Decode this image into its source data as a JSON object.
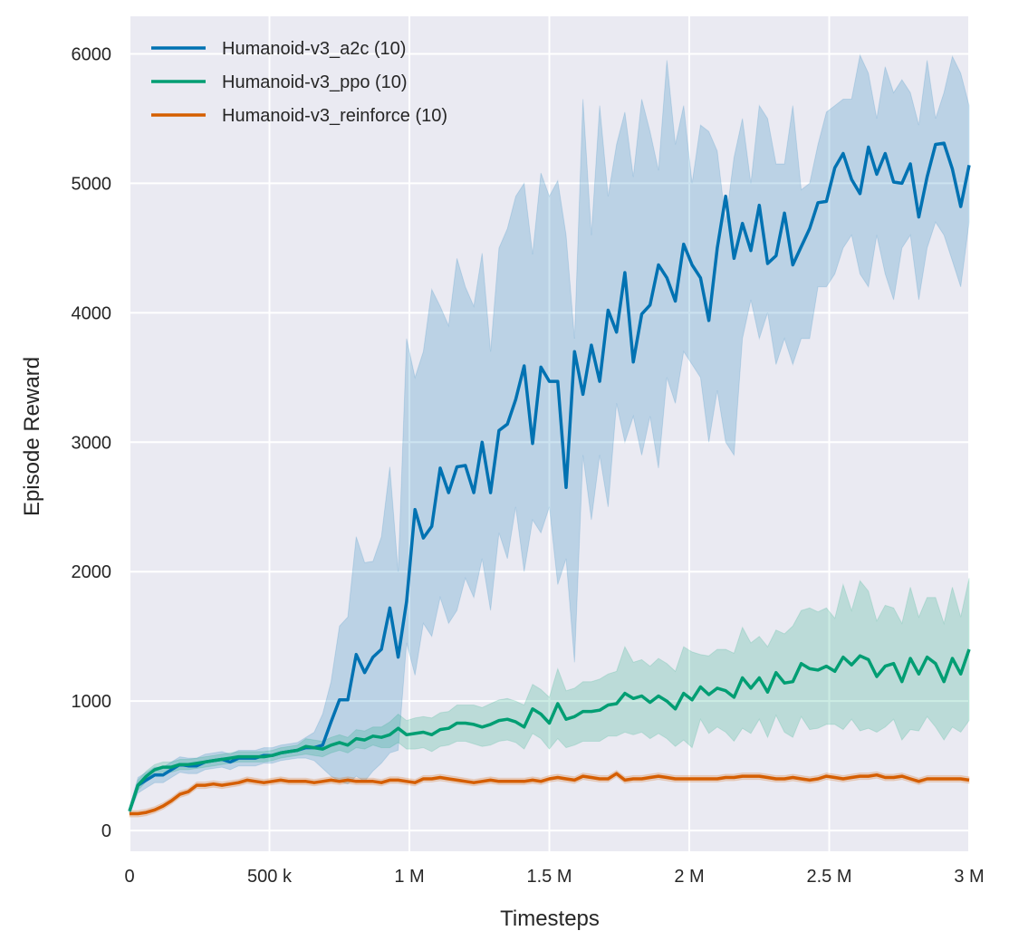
{
  "chart_data": {
    "type": "line",
    "xlabel": "Timesteps",
    "ylabel": "Episode Reward",
    "xlim": [
      0,
      3000000
    ],
    "ylim": [
      -160,
      6290
    ],
    "grid": true,
    "background": "#eaeaf2",
    "legend_position": "top-left",
    "xticks": [
      0,
      500000,
      1000000,
      1500000,
      2000000,
      2500000,
      3000000
    ],
    "xtick_labels": [
      "0",
      "500 k",
      "1 M",
      "1.5 M",
      "2 M",
      "2.5 M",
      "3 M"
    ],
    "yticks": [
      0,
      1000,
      2000,
      3000,
      4000,
      5000,
      6000
    ],
    "ytick_labels": [
      "0",
      "1000",
      "2000",
      "3000",
      "4000",
      "5000",
      "6000"
    ],
    "x": [
      0,
      30000,
      60000,
      90000,
      120000,
      150000,
      180000,
      210000,
      240000,
      270000,
      300000,
      330000,
      360000,
      390000,
      420000,
      450000,
      480000,
      510000,
      540000,
      570000,
      600000,
      630000,
      660000,
      690000,
      720000,
      750000,
      780000,
      810000,
      840000,
      870000,
      900000,
      930000,
      960000,
      990000,
      1020000,
      1050000,
      1080000,
      1110000,
      1140000,
      1170000,
      1200000,
      1230000,
      1260000,
      1290000,
      1320000,
      1350000,
      1380000,
      1410000,
      1440000,
      1470000,
      1500000,
      1530000,
      1560000,
      1590000,
      1620000,
      1650000,
      1680000,
      1710000,
      1740000,
      1770000,
      1800000,
      1830000,
      1860000,
      1890000,
      1920000,
      1950000,
      1980000,
      2010000,
      2040000,
      2070000,
      2100000,
      2130000,
      2160000,
      2190000,
      2220000,
      2250000,
      2280000,
      2310000,
      2340000,
      2370000,
      2400000,
      2430000,
      2460000,
      2490000,
      2520000,
      2550000,
      2580000,
      2610000,
      2640000,
      2670000,
      2700000,
      2730000,
      2760000,
      2790000,
      2820000,
      2850000,
      2880000,
      2910000,
      2940000,
      2970000,
      3000000
    ],
    "series": [
      {
        "name": "Humanoid-v3_a2c (10)",
        "color": "#0072b2",
        "mean": [
          150,
          350,
          390,
          430,
          430,
          470,
          510,
          500,
          500,
          530,
          540,
          550,
          530,
          560,
          560,
          560,
          580,
          580,
          600,
          610,
          620,
          640,
          640,
          660,
          840,
          1010,
          1010,
          1360,
          1220,
          1340,
          1400,
          1720,
          1340,
          1770,
          2480,
          2260,
          2350,
          2800,
          2610,
          2810,
          2820,
          2610,
          3000,
          2610,
          3090,
          3140,
          3330,
          3590,
          2990,
          3580,
          3470,
          3470,
          2650,
          3700,
          3370,
          3750,
          3470,
          4020,
          3850,
          4310,
          3620,
          3990,
          4060,
          4370,
          4270,
          4090,
          4530,
          4370,
          4270,
          3940,
          4500,
          4900,
          4420,
          4690,
          4480,
          4830,
          4380,
          4440,
          4770,
          4370,
          4510,
          4650,
          4850,
          4860,
          5120,
          5230,
          5030,
          4920,
          5280,
          5070,
          5230,
          5010,
          5000,
          5150,
          4740,
          5050,
          5300,
          5310,
          5110,
          4820,
          5140
        ],
        "lower": [
          130,
          290,
          330,
          370,
          370,
          410,
          450,
          440,
          440,
          470,
          480,
          490,
          470,
          500,
          500,
          500,
          520,
          520,
          540,
          550,
          560,
          560,
          540,
          480,
          420,
          380,
          360,
          420,
          380,
          460,
          520,
          600,
          620,
          1450,
          1200,
          1600,
          1500,
          1800,
          1600,
          1700,
          1950,
          1800,
          2100,
          1700,
          2300,
          2100,
          2500,
          2000,
          2400,
          2300,
          2500,
          1900,
          2100,
          1300,
          2900,
          2400,
          2900,
          2500,
          3300,
          3000,
          3200,
          2900,
          3200,
          2800,
          3500,
          3300,
          3700,
          3600,
          3500,
          3000,
          3400,
          3000,
          2900,
          3800,
          4100,
          3800,
          4000,
          3600,
          3800,
          3600,
          3800,
          3800,
          4200,
          4200,
          4300,
          4500,
          4600,
          4300,
          4200,
          4600,
          4300,
          4100,
          4500,
          4600,
          4100,
          4500,
          4700,
          4600,
          4400,
          4200,
          4700
        ],
        "upper": [
          180,
          410,
          450,
          490,
          490,
          530,
          570,
          560,
          560,
          590,
          600,
          610,
          590,
          620,
          620,
          620,
          640,
          640,
          660,
          670,
          680,
          720,
          760,
          900,
          1150,
          1580,
          1650,
          2270,
          2070,
          2080,
          2270,
          2810,
          2000,
          3800,
          3500,
          3700,
          4180,
          4050,
          3900,
          4420,
          4200,
          4050,
          4460,
          3700,
          4500,
          4650,
          4900,
          5000,
          4450,
          5080,
          4900,
          5020,
          4600,
          3800,
          5650,
          4600,
          5600,
          4900,
          5300,
          5550,
          5050,
          5650,
          5400,
          5100,
          5950,
          5300,
          5600,
          5000,
          5450,
          5400,
          5250,
          4700,
          5200,
          5500,
          5000,
          5600,
          5500,
          5150,
          5150,
          5600,
          4950,
          5000,
          5300,
          5550,
          5600,
          5650,
          5650,
          5990,
          5850,
          5500,
          5900,
          5700,
          5800,
          5700,
          5450,
          5950,
          5500,
          5700,
          5980,
          5850,
          5600
        ]
      },
      {
        "name": "Humanoid-v3_ppo (10)",
        "color": "#009e73",
        "mean": [
          150,
          350,
          420,
          470,
          490,
          490,
          510,
          510,
          520,
          530,
          540,
          550,
          560,
          570,
          570,
          570,
          570,
          580,
          600,
          610,
          620,
          650,
          640,
          630,
          660,
          680,
          660,
          710,
          700,
          730,
          720,
          740,
          790,
          740,
          750,
          760,
          740,
          780,
          790,
          830,
          830,
          820,
          800,
          820,
          850,
          860,
          840,
          800,
          940,
          900,
          830,
          980,
          860,
          880,
          920,
          920,
          930,
          970,
          980,
          1060,
          1020,
          1040,
          990,
          1040,
          1000,
          940,
          1060,
          1010,
          1110,
          1050,
          1100,
          1080,
          1030,
          1180,
          1100,
          1180,
          1070,
          1220,
          1140,
          1150,
          1290,
          1250,
          1240,
          1270,
          1230,
          1340,
          1280,
          1350,
          1320,
          1190,
          1270,
          1290,
          1150,
          1330,
          1210,
          1340,
          1290,
          1150,
          1330,
          1210,
          1400
        ],
        "lower": [
          130,
          310,
          380,
          430,
          450,
          450,
          470,
          470,
          480,
          490,
          500,
          510,
          520,
          530,
          530,
          530,
          530,
          540,
          560,
          570,
          580,
          590,
          580,
          570,
          600,
          620,
          600,
          640,
          630,
          660,
          640,
          640,
          680,
          630,
          630,
          640,
          610,
          650,
          660,
          690,
          690,
          670,
          650,
          660,
          690,
          700,
          680,
          630,
          750,
          710,
          630,
          710,
          640,
          660,
          690,
          690,
          690,
          730,
          730,
          760,
          740,
          760,
          710,
          750,
          710,
          650,
          700,
          640,
          860,
          750,
          800,
          760,
          690,
          790,
          750,
          860,
          720,
          890,
          760,
          720,
          880,
          780,
          790,
          820,
          820,
          780,
          860,
          770,
          790,
          760,
          800,
          860,
          700,
          780,
          770,
          880,
          800,
          700,
          800,
          760,
          850
        ],
        "upper": [
          170,
          390,
          460,
          510,
          530,
          530,
          550,
          550,
          560,
          570,
          580,
          590,
          600,
          610,
          610,
          610,
          610,
          620,
          640,
          650,
          660,
          710,
          700,
          690,
          720,
          740,
          720,
          780,
          770,
          800,
          800,
          840,
          900,
          850,
          870,
          880,
          870,
          910,
          920,
          970,
          970,
          970,
          950,
          980,
          1010,
          1020,
          1000,
          970,
          1130,
          1090,
          1030,
          1250,
          1080,
          1100,
          1150,
          1150,
          1170,
          1210,
          1230,
          1420,
          1300,
          1320,
          1270,
          1330,
          1290,
          1230,
          1420,
          1380,
          1360,
          1350,
          1400,
          1400,
          1370,
          1570,
          1450,
          1500,
          1420,
          1550,
          1520,
          1580,
          1700,
          1720,
          1690,
          1720,
          1640,
          1900,
          1700,
          1930,
          1850,
          1620,
          1740,
          1720,
          1600,
          1880,
          1650,
          1800,
          1800,
          1600,
          1880,
          1650,
          1950
        ]
      },
      {
        "name": "Humanoid-v3_reinforce (10)",
        "color": "#d55e00",
        "mean": [
          130,
          130,
          140,
          160,
          190,
          230,
          280,
          300,
          350,
          350,
          360,
          350,
          360,
          370,
          390,
          380,
          370,
          380,
          390,
          380,
          380,
          380,
          370,
          380,
          390,
          380,
          390,
          380,
          380,
          380,
          370,
          390,
          390,
          380,
          370,
          400,
          400,
          410,
          400,
          390,
          380,
          370,
          380,
          390,
          380,
          380,
          380,
          380,
          390,
          380,
          400,
          410,
          400,
          390,
          420,
          410,
          400,
          400,
          440,
          390,
          400,
          400,
          410,
          420,
          410,
          400,
          400,
          400,
          400,
          400,
          400,
          410,
          410,
          420,
          420,
          420,
          410,
          400,
          400,
          410,
          400,
          390,
          400,
          420,
          410,
          400,
          410,
          420,
          420,
          430,
          410,
          410,
          420,
          400,
          380,
          400,
          400,
          400,
          400,
          400,
          390
        ],
        "ci_halfwidth": 25
      }
    ]
  }
}
